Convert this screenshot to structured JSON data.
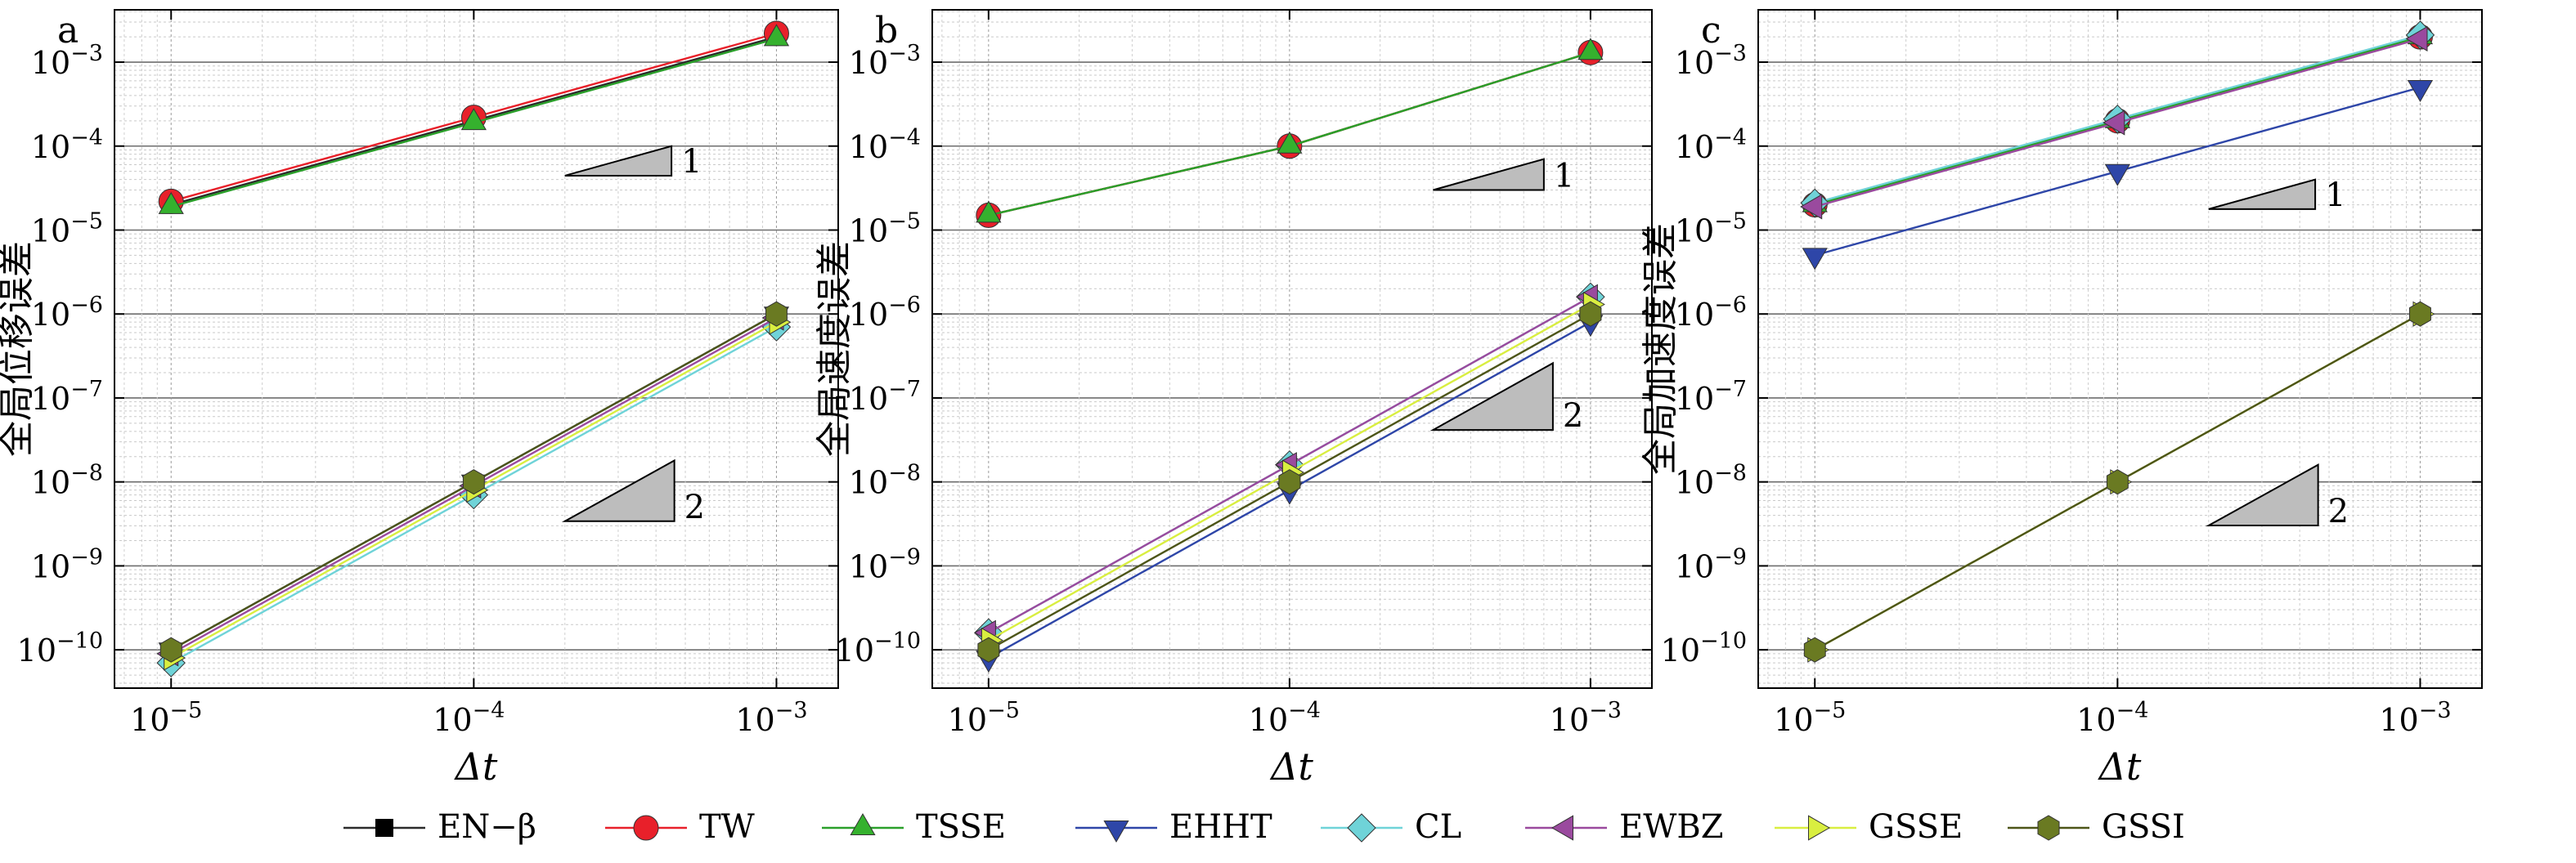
{
  "chart_data": [
    {
      "type": "line",
      "panel_label": "a",
      "xlabel": "Δt",
      "ylabel": "全局位移误差",
      "x": [
        1e-05,
        0.0001,
        0.001
      ],
      "xlim": [
        6.5e-06,
        0.0016
      ],
      "ylim": [
        3.5e-11,
        0.0042
      ],
      "xscale": "log",
      "yscale": "log",
      "grid": true,
      "x_ticks": [
        {
          "v": 1e-05,
          "exp": "−5"
        },
        {
          "v": 0.0001,
          "exp": "−4"
        },
        {
          "v": 0.001,
          "exp": "−3"
        }
      ],
      "y_ticks": [
        {
          "v": 1e-10,
          "exp": "−10"
        },
        {
          "v": 1e-09,
          "exp": "−9"
        },
        {
          "v": 1e-08,
          "exp": "−8"
        },
        {
          "v": 1e-07,
          "exp": "−7"
        },
        {
          "v": 1e-06,
          "exp": "−6"
        },
        {
          "v": 1e-05,
          "exp": "−5"
        },
        {
          "v": 0.0001,
          "exp": "−4"
        },
        {
          "v": 0.001,
          "exp": "−3"
        }
      ],
      "slope_triangles": [
        {
          "label": "1",
          "x0": 0.0002,
          "x1": 0.00045,
          "y1": 0.0001,
          "slope": 1
        },
        {
          "label": "2",
          "x0": 0.0002,
          "x1": 0.00046,
          "y1": 1.8e-08,
          "slope": 2
        }
      ],
      "series": [
        {
          "name": "EN−β",
          "y": [
            2e-05,
            0.0002,
            0.002
          ]
        },
        {
          "name": "TW",
          "y": [
            2.2e-05,
            0.00022,
            0.0022
          ]
        },
        {
          "name": "TSSE",
          "y": [
            1.9e-05,
            0.00019,
            0.0019
          ]
        },
        {
          "name": "EHHT",
          "y": [
            1e-10,
            1e-08,
            1e-06
          ]
        },
        {
          "name": "CL",
          "y": [
            7e-11,
            7e-09,
            7e-07
          ]
        },
        {
          "name": "EWBZ",
          "y": [
            9e-11,
            9e-09,
            9e-07
          ]
        },
        {
          "name": "GSSE",
          "y": [
            8e-11,
            8e-09,
            8e-07
          ]
        },
        {
          "name": "GSSI",
          "y": [
            1e-10,
            1e-08,
            1e-06
          ]
        }
      ]
    },
    {
      "type": "line",
      "panel_label": "b",
      "xlabel": "Δt",
      "ylabel": "全局速度误差",
      "x": [
        1e-05,
        0.0001,
        0.001
      ],
      "xlim": [
        6.5e-06,
        0.0016
      ],
      "ylim": [
        3.5e-11,
        0.0042
      ],
      "xscale": "log",
      "yscale": "log",
      "grid": true,
      "x_ticks": [
        {
          "v": 1e-05,
          "exp": "−5"
        },
        {
          "v": 0.0001,
          "exp": "−4"
        },
        {
          "v": 0.001,
          "exp": "−3"
        }
      ],
      "y_ticks": [
        {
          "v": 1e-10,
          "exp": "−10"
        },
        {
          "v": 1e-09,
          "exp": "−9"
        },
        {
          "v": 1e-08,
          "exp": "−8"
        },
        {
          "v": 1e-07,
          "exp": "−7"
        },
        {
          "v": 1e-06,
          "exp": "−6"
        },
        {
          "v": 1e-05,
          "exp": "−5"
        },
        {
          "v": 0.0001,
          "exp": "−4"
        },
        {
          "v": 0.001,
          "exp": "−3"
        }
      ],
      "slope_triangles": [
        {
          "label": "1",
          "x0": 0.0003,
          "x1": 0.0007,
          "y1": 7e-05,
          "slope": 1
        },
        {
          "label": "2",
          "x0": 0.0003,
          "x1": 0.00075,
          "y1": 2.6e-07,
          "slope": 2
        }
      ],
      "series": [
        {
          "name": "EN−β",
          "y": [
            1.5e-05,
            0.0001,
            0.0013
          ]
        },
        {
          "name": "TW",
          "y": [
            1.5e-05,
            0.0001,
            0.0013
          ]
        },
        {
          "name": "TSSE",
          "y": [
            1.5e-05,
            0.0001,
            0.0013
          ]
        },
        {
          "name": "EHHT",
          "y": [
            8e-11,
            8e-09,
            8e-07
          ]
        },
        {
          "name": "CL",
          "y": [
            1.6e-10,
            1.6e-08,
            1.6e-06
          ]
        },
        {
          "name": "EWBZ",
          "y": [
            1.6e-10,
            1.6e-08,
            1.6e-06
          ]
        },
        {
          "name": "GSSE",
          "y": [
            1.3e-10,
            1.3e-08,
            1.3e-06
          ]
        },
        {
          "name": "GSSI",
          "y": [
            1e-10,
            1e-08,
            1e-06
          ]
        }
      ]
    },
    {
      "type": "line",
      "panel_label": "c",
      "xlabel": "Δt",
      "ylabel": "全局加速度误差",
      "x": [
        1e-05,
        0.0001,
        0.001
      ],
      "xlim": [
        6.5e-06,
        0.0016
      ],
      "ylim": [
        3.5e-11,
        0.0042
      ],
      "xscale": "log",
      "yscale": "log",
      "grid": true,
      "x_ticks": [
        {
          "v": 1e-05,
          "exp": "−5"
        },
        {
          "v": 0.0001,
          "exp": "−4"
        },
        {
          "v": 0.001,
          "exp": "−3"
        }
      ],
      "y_ticks": [
        {
          "v": 1e-10,
          "exp": "−10"
        },
        {
          "v": 1e-09,
          "exp": "−9"
        },
        {
          "v": 1e-08,
          "exp": "−8"
        },
        {
          "v": 1e-07,
          "exp": "−7"
        },
        {
          "v": 1e-06,
          "exp": "−6"
        },
        {
          "v": 1e-05,
          "exp": "−5"
        },
        {
          "v": 0.0001,
          "exp": "−4"
        },
        {
          "v": 0.001,
          "exp": "−3"
        }
      ],
      "slope_triangles": [
        {
          "label": "1",
          "x0": 0.0002,
          "x1": 0.00045,
          "y1": 4e-05,
          "slope": 1
        },
        {
          "label": "2",
          "x0": 0.0002,
          "x1": 0.00046,
          "y1": 1.6e-08,
          "slope": 2
        }
      ],
      "series": [
        {
          "name": "EN−β",
          "y": [
            2e-05,
            0.0002,
            0.002
          ]
        },
        {
          "name": "TW",
          "y": [
            2e-05,
            0.0002,
            0.002
          ]
        },
        {
          "name": "TSSE",
          "y": [
            2e-05,
            0.0002,
            0.002
          ]
        },
        {
          "name": "EHHT",
          "y": [
            5e-06,
            5e-05,
            0.0005
          ]
        },
        {
          "name": "CL",
          "y": [
            2.1e-05,
            0.00021,
            0.0021
          ]
        },
        {
          "name": "EWBZ",
          "y": [
            1.9e-05,
            0.00019,
            0.0019
          ]
        },
        {
          "name": "GSSE",
          "y": [
            1e-10,
            1e-08,
            1e-06
          ]
        },
        {
          "name": "GSSI",
          "y": [
            1e-10,
            1e-08,
            1e-06
          ]
        }
      ]
    }
  ],
  "legend": {
    "placement": "bottom",
    "items": [
      {
        "label": "EN−β",
        "color": "#000000",
        "line": "#2b2b2b",
        "marker": "square"
      },
      {
        "label": "TW",
        "color": "#e8202a",
        "line": "#e8202a",
        "marker": "circle"
      },
      {
        "label": "TSSE",
        "color": "#35b12e",
        "line": "#2aa02a",
        "marker": "triangle-up"
      },
      {
        "label": "EHHT",
        "color": "#2e46a8",
        "line": "#2e46a8",
        "marker": "triangle-down"
      },
      {
        "label": "CL",
        "color": "#6fd3d8",
        "line": "#6fd3d8",
        "marker": "diamond"
      },
      {
        "label": "EWBZ",
        "color": "#9a4a9e",
        "line": "#9a4a9e",
        "marker": "triangle-left"
      },
      {
        "label": "GSSE",
        "color": "#d9ee40",
        "line": "#d9ee40",
        "marker": "triangle-right"
      },
      {
        "label": "GSSI",
        "color": "#6a7a22",
        "line": "#4d5518",
        "marker": "hexagon"
      }
    ]
  }
}
